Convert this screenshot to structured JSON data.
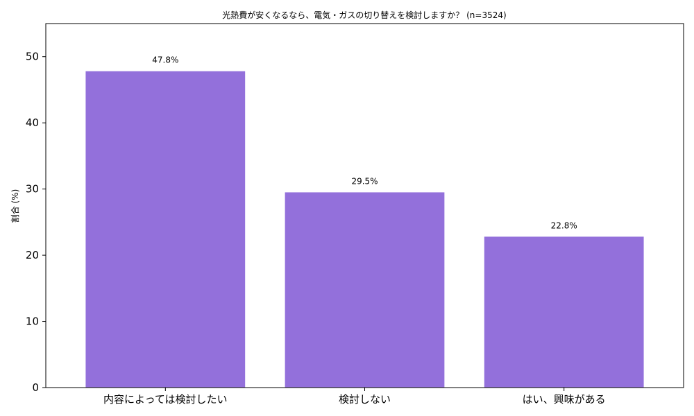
{
  "chart_data": {
    "type": "bar",
    "title": "光熱費が安くなるなら、電気・ガスの切り替えを検討しますか？ (n=3524)",
    "xlabel": "",
    "ylabel": "割合 (%)",
    "categories": [
      "内容によっては検討したい",
      "検討しない",
      "はい、興味がある"
    ],
    "values": [
      47.8,
      29.5,
      22.8
    ],
    "data_labels": [
      "47.8%",
      "29.5%",
      "22.8%"
    ],
    "ylim": [
      0,
      55
    ],
    "yticks": [
      0,
      10,
      20,
      30,
      40,
      50
    ],
    "bar_color": "#9370DB",
    "grid": false,
    "legend": "none"
  }
}
